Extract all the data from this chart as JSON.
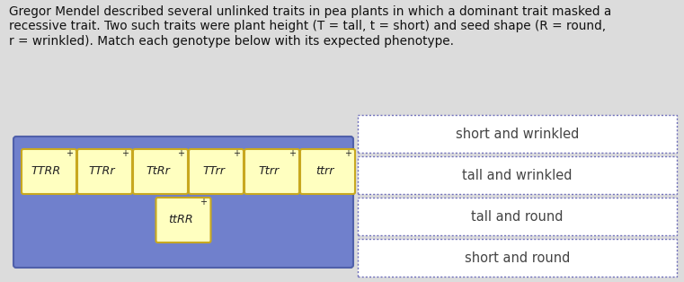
{
  "bg_color": "#dcdcdc",
  "title_lines": [
    "Gregor Mendel described several unlinked traits in pea plants in which a dominant trait masked a",
    "recessive trait. Two such traits were plant height (Τ = tall, τ = short) and seed shape (Ρ = round,",
    "ρ = wrinkled). Match each genotype below with its expected phenotype."
  ],
  "title_fontsize": 9.8,
  "blue_box_color": "#7080cc",
  "blue_box_edge": "#5060aa",
  "yellow_box_color": "#ffffc0",
  "yellow_border_color": "#c8a820",
  "genotype_labels_row1": [
    "TTRR",
    "TTRr",
    "TtRr",
    "TTrr",
    "Ttrr",
    "ttrr"
  ],
  "genotype_labels_row2": [
    "ttRR"
  ],
  "phenotype_labels": [
    "short and wrinkled",
    "tall and wrinkled",
    "tall and round",
    "short and round"
  ],
  "dashed_border_color": "#7070bb",
  "phenotype_text_color": "#444444",
  "genotype_text_color": "#222222"
}
